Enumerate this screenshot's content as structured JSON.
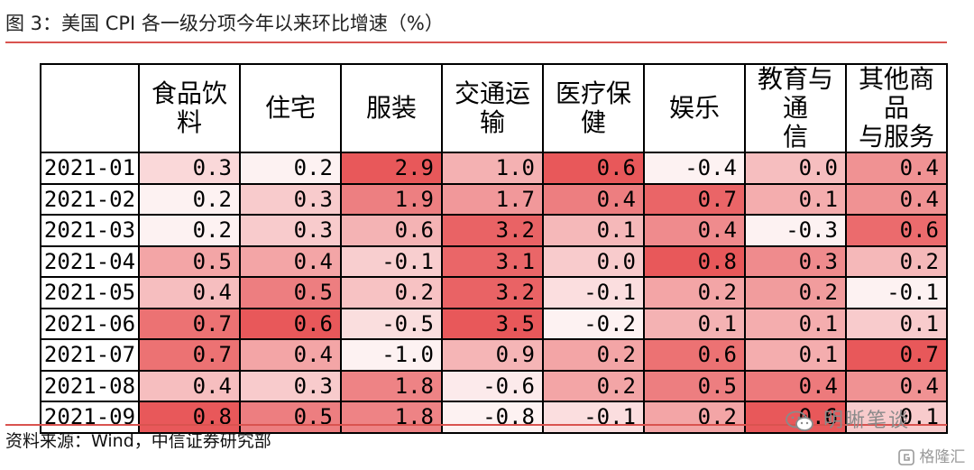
{
  "title": "图 3：美国 CPI 各一级分项今年以来环比增速（%）",
  "source": "资料来源：Wind，中信证券研究部",
  "watermark": "明晰笔谈",
  "watermark2": "格隆汇",
  "colors": {
    "accent": "#d9534f",
    "cell_min": "#ffffff",
    "cell_max": "#e8585a"
  },
  "chart_data": {
    "type": "heatmap",
    "title": "图 3：美国 CPI 各一级分项今年以来环比增速（%）",
    "columns": [
      "食品饮料",
      "住宅",
      "服装",
      "交通运输",
      "医疗保健",
      "娱乐",
      "教育与通信",
      "其他商品与服务"
    ],
    "column_labels": [
      [
        "食品饮料"
      ],
      [
        "住宅"
      ],
      [
        "服装"
      ],
      [
        "交通运输"
      ],
      [
        "医疗保健"
      ],
      [
        "娱乐"
      ],
      [
        "教育与通",
        "信"
      ],
      [
        "其他商品",
        "与服务"
      ]
    ],
    "rows": [
      "2021-01",
      "2021-02",
      "2021-03",
      "2021-04",
      "2021-05",
      "2021-06",
      "2021-07",
      "2021-08",
      "2021-09"
    ],
    "values": [
      [
        "0.3",
        "0.2",
        "2.9",
        "1.0",
        "0.6",
        "-0.4",
        "0.0",
        "0.4"
      ],
      [
        "0.2",
        "0.3",
        "1.9",
        "1.7",
        "0.4",
        "0.7",
        "0.1",
        "0.4"
      ],
      [
        "0.2",
        "0.3",
        "0.6",
        "3.2",
        "0.1",
        "0.4",
        "-0.3",
        "0.6"
      ],
      [
        "0.5",
        "0.4",
        "-0.1",
        "3.1",
        "0.0",
        "0.8",
        "0.3",
        "0.2"
      ],
      [
        "0.4",
        "0.5",
        "0.2",
        "3.2",
        "-0.1",
        "0.2",
        "0.2",
        "-0.1"
      ],
      [
        "0.7",
        "0.6",
        "-0.5",
        "3.5",
        "-0.2",
        "0.1",
        "0.1",
        "0.1"
      ],
      [
        "0.7",
        "0.4",
        "-1.0",
        "0.9",
        "0.2",
        "0.6",
        "0.1",
        "0.7"
      ],
      [
        "0.4",
        "0.3",
        "1.8",
        "-0.6",
        "0.2",
        "0.5",
        "0.4",
        "0.4"
      ],
      [
        "0.8",
        "0.5",
        "1.8",
        "-0.8",
        "-0.1",
        "0.2",
        "0.6",
        "0.1"
      ]
    ]
  }
}
